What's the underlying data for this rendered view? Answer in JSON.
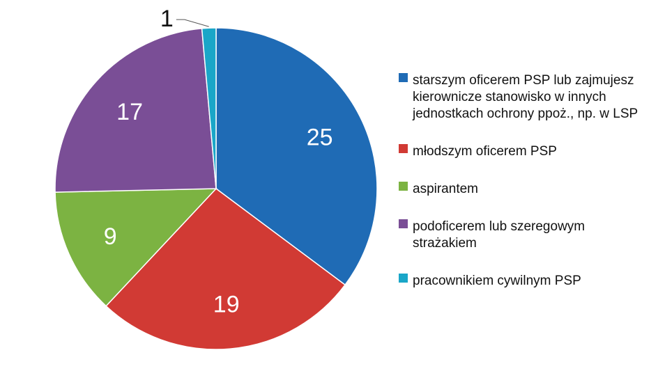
{
  "chart_data": {
    "type": "pie",
    "categories": [
      "starszym oficerem PSP lub zajmujesz kierownicze stanowisko w innych jednostkach ochrony ppoż., np. w LSP",
      "młodszym oficerem PSP",
      "aspirantem",
      "podoficerem lub szeregowym strażakiem",
      "pracownikiem cywilnym PSP"
    ],
    "values": [
      25,
      19,
      9,
      17,
      1
    ],
    "colors": [
      "#1f6bb5",
      "#d13a34",
      "#7cb342",
      "#7a4e96",
      "#1aa6c8"
    ],
    "legend_placement": "right",
    "start_angle_deg": 0,
    "direction": "clockwise"
  },
  "legend": {
    "items": [
      {
        "lines": [
          "starszym oficerem PSP lub zajmujesz",
          "kierownicze stanowisko w  innych",
          "jednostkach ochrony ppoż., np.  w  LSP"
        ],
        "color": "#1f6bb5"
      },
      {
        "lines": [
          "młodszym oficerem PSP"
        ],
        "color": "#d13a34"
      },
      {
        "lines": [
          "aspirantem"
        ],
        "color": "#7cb342"
      },
      {
        "lines": [
          "podoficerem lub szeregowym",
          "strażakiem"
        ],
        "color": "#7a4e96"
      },
      {
        "lines": [
          "pracownikiem cywilnym PSP"
        ],
        "color": "#1aa6c8"
      }
    ]
  }
}
